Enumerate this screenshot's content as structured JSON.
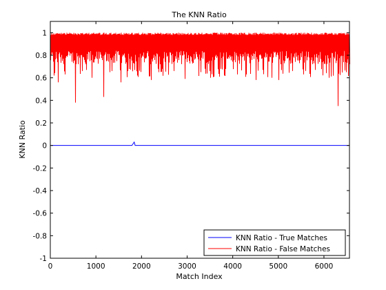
{
  "chart_data": {
    "type": "line",
    "title": "The KNN Ratio",
    "xlabel": "Match Index",
    "ylabel": "KNN Ratio",
    "xlim": [
      0,
      6560
    ],
    "ylim": [
      -1,
      1.1
    ],
    "xticks": [
      0,
      1000,
      2000,
      3000,
      4000,
      5000,
      6000
    ],
    "xtick_labels": [
      "0",
      "1000",
      "2000",
      "3000",
      "4000",
      "5000",
      "6000"
    ],
    "yticks": [
      -1,
      -0.8,
      -0.6,
      -0.4,
      -0.2,
      0,
      0.2,
      0.4,
      0.6,
      0.8,
      1
    ],
    "ytick_labels": [
      "-1",
      "-0.8",
      "-0.6",
      "-0.4",
      "-0.2",
      "0",
      "0.2",
      "0.4",
      "0.6",
      "0.8",
      "1"
    ],
    "grid": false,
    "legend_position": "bottom-right",
    "series": [
      {
        "name": "KNN Ratio - True Matches",
        "color": "#0000ff",
        "points": [
          [
            0,
            0.0
          ],
          [
            1000,
            0.0
          ],
          [
            1790,
            0.0
          ],
          [
            1840,
            0.03
          ],
          [
            1860,
            0.0
          ],
          [
            3000,
            0.0
          ],
          [
            4000,
            0.0
          ],
          [
            5000,
            0.0
          ],
          [
            6000,
            0.0
          ],
          [
            6560,
            0.0
          ]
        ]
      },
      {
        "name": "KNN Ratio - False Matches",
        "color": "#ff0000",
        "upper": 1.0,
        "typical_low": 0.72,
        "dips": [
          [
            80,
            0.62
          ],
          [
            160,
            0.56
          ],
          [
            320,
            0.63
          ],
          [
            550,
            0.38
          ],
          [
            700,
            0.66
          ],
          [
            900,
            0.6
          ],
          [
            1160,
            0.43
          ],
          [
            1300,
            0.65
          ],
          [
            1540,
            0.56
          ],
          [
            1700,
            0.66
          ],
          [
            1900,
            0.62
          ],
          [
            2200,
            0.58
          ],
          [
            2450,
            0.68
          ],
          [
            2700,
            0.66
          ],
          [
            2950,
            0.59
          ],
          [
            3300,
            0.65
          ],
          [
            3500,
            0.6
          ],
          [
            3700,
            0.61
          ],
          [
            4100,
            0.63
          ],
          [
            4300,
            0.63
          ],
          [
            4500,
            0.58
          ],
          [
            4650,
            0.67
          ],
          [
            4850,
            0.6
          ],
          [
            5000,
            0.58
          ],
          [
            5300,
            0.66
          ],
          [
            5550,
            0.63
          ],
          [
            5800,
            0.67
          ],
          [
            6100,
            0.6
          ],
          [
            6300,
            0.35
          ],
          [
            6480,
            0.65
          ]
        ]
      }
    ]
  }
}
